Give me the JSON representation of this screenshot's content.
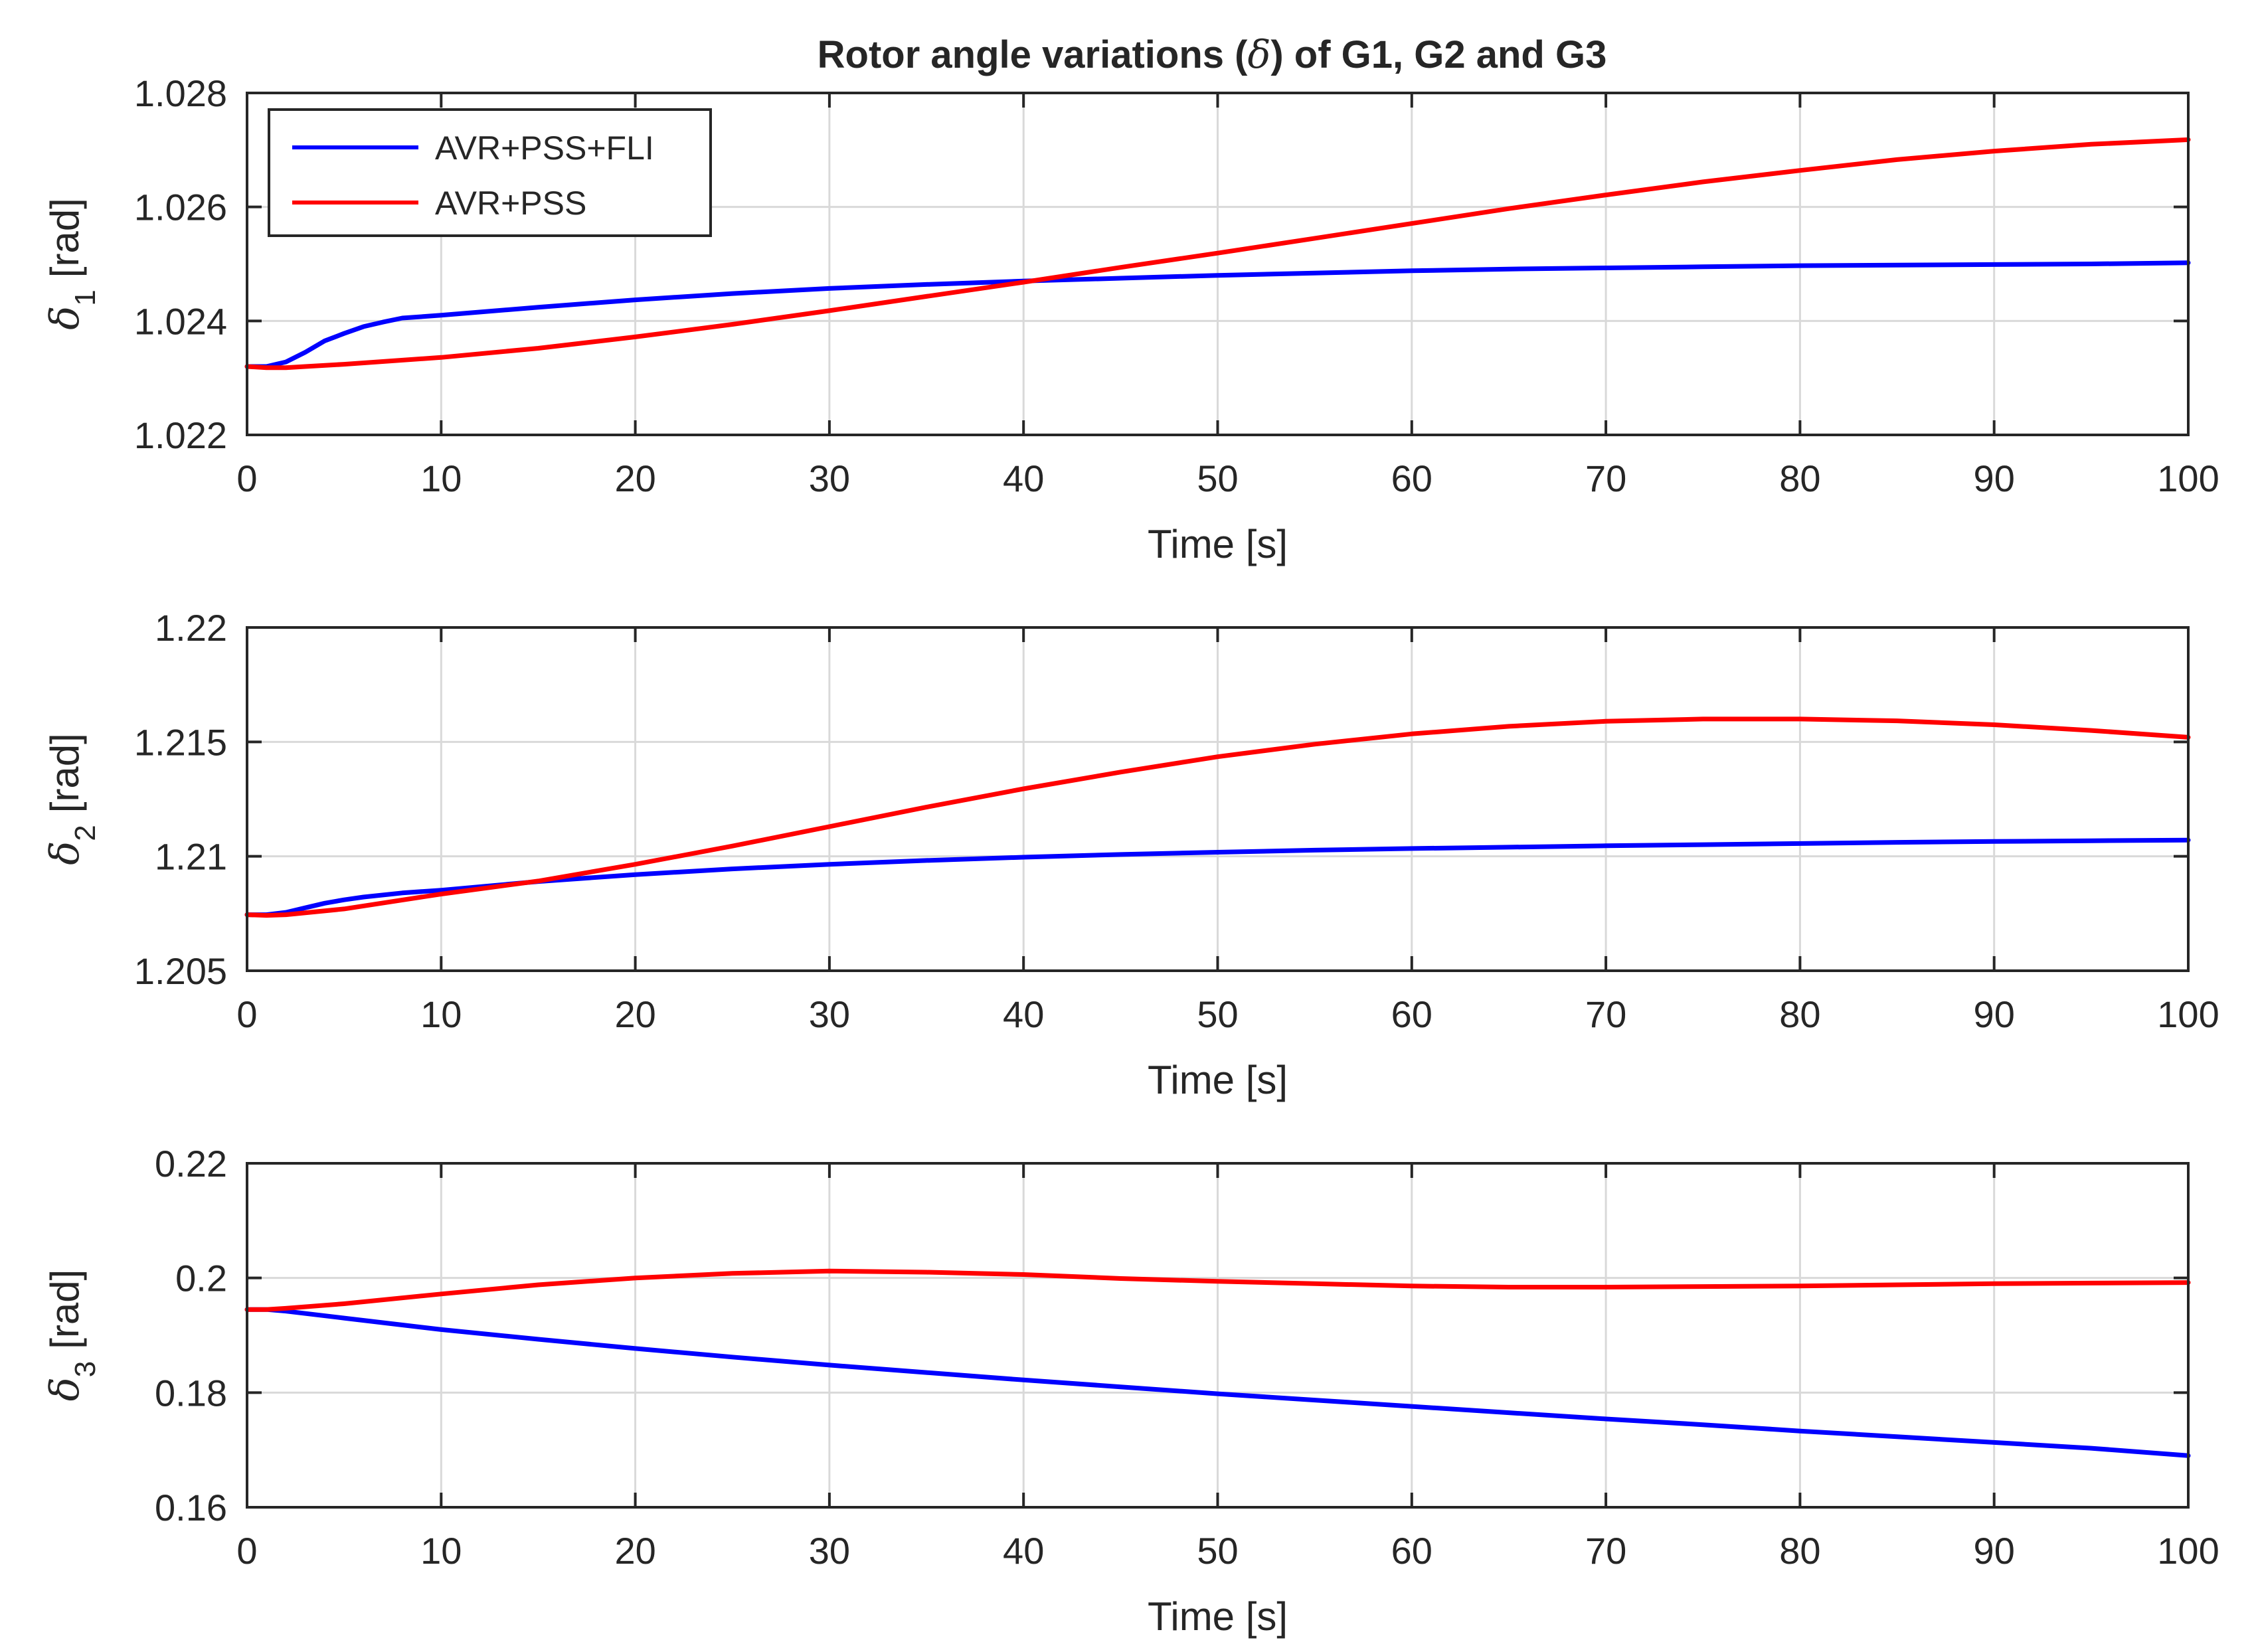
{
  "title": "Rotor angle variations (δ) of G1, G2 and G3",
  "title_parts": {
    "pre": "Rotor angle variations (",
    "sym": "δ",
    "post": ") of G1, G2 and G3"
  },
  "colors": {
    "blue": "#0000ff",
    "red": "#ff0000",
    "axis": "#262626",
    "grid": "#d9d9d9"
  },
  "legend": {
    "position": "top-left",
    "items": [
      "AVR+PSS+FLI",
      "AVR+PSS"
    ]
  },
  "chart_data": [
    {
      "type": "line",
      "ylabel": {
        "symbol": "δ",
        "sub": "1",
        "unit": "[rad]"
      },
      "xlabel": "Time [s]",
      "xlim": [
        0,
        100
      ],
      "ylim": [
        1.022,
        1.028
      ],
      "xticks": [
        "0",
        "10",
        "20",
        "30",
        "40",
        "50",
        "60",
        "70",
        "80",
        "90",
        "100"
      ],
      "yticks": [
        "1.022",
        "1.024",
        "1.026",
        "1.028"
      ],
      "ytick_values": [
        1.022,
        1.024,
        1.026,
        1.028
      ],
      "grid": true,
      "series": [
        {
          "name": "AVR+PSS+FLI",
          "color": "#0000ff",
          "x": [
            0,
            1,
            2,
            3,
            4,
            5,
            6,
            7,
            8,
            10,
            15,
            20,
            25,
            30,
            35,
            40,
            45,
            50,
            55,
            60,
            65,
            70,
            75,
            80,
            85,
            90,
            95,
            100
          ],
          "y": [
            1.0232,
            1.0232,
            1.02328,
            1.02345,
            1.02365,
            1.02378,
            1.0239,
            1.02398,
            1.02405,
            1.0241,
            1.02424,
            1.02437,
            1.02448,
            1.02457,
            1.02464,
            1.0247,
            1.02475,
            1.0248,
            1.02484,
            1.02488,
            1.02491,
            1.02493,
            1.02495,
            1.02497,
            1.02498,
            1.02499,
            1.025,
            1.02502
          ]
        },
        {
          "name": "AVR+PSS",
          "color": "#ff0000",
          "x": [
            0,
            1,
            2,
            3,
            5,
            10,
            15,
            20,
            25,
            30,
            35,
            40,
            45,
            50,
            55,
            60,
            65,
            70,
            75,
            80,
            85,
            90,
            95,
            100
          ],
          "y": [
            1.0232,
            1.02318,
            1.02318,
            1.0232,
            1.02324,
            1.02336,
            1.02352,
            1.02372,
            1.02394,
            1.02418,
            1.02443,
            1.02468,
            1.02494,
            1.02519,
            1.02545,
            1.02571,
            1.02597,
            1.02621,
            1.02644,
            1.02664,
            1.02683,
            1.02698,
            1.0271,
            1.02718
          ]
        }
      ]
    },
    {
      "type": "line",
      "ylabel": {
        "symbol": "δ",
        "sub": "2",
        "unit": "[rad]"
      },
      "xlabel": "Time [s]",
      "xlim": [
        0,
        100
      ],
      "ylim": [
        1.205,
        1.22
      ],
      "xticks": [
        "0",
        "10",
        "20",
        "30",
        "40",
        "50",
        "60",
        "70",
        "80",
        "90",
        "100"
      ],
      "yticks": [
        "1.205",
        "1.21",
        "1.215",
        "1.22"
      ],
      "ytick_values": [
        1.205,
        1.21,
        1.215,
        1.22
      ],
      "grid": true,
      "series": [
        {
          "name": "AVR+PSS+FLI",
          "color": "#0000ff",
          "x": [
            0,
            1,
            2,
            3,
            4,
            5,
            6,
            8,
            10,
            15,
            20,
            25,
            30,
            35,
            40,
            45,
            50,
            55,
            60,
            65,
            70,
            75,
            80,
            85,
            90,
            95,
            100
          ],
          "y": [
            1.20745,
            1.20745,
            1.20755,
            1.20775,
            1.20795,
            1.2081,
            1.20822,
            1.2084,
            1.20852,
            1.2089,
            1.2092,
            1.20945,
            1.20965,
            1.20982,
            1.20996,
            1.21008,
            1.21018,
            1.21027,
            1.21034,
            1.2104,
            1.21046,
            1.21051,
            1.21056,
            1.21061,
            1.21065,
            1.21068,
            1.21071
          ]
        },
        {
          "name": "AVR+PSS",
          "color": "#ff0000",
          "x": [
            0,
            1,
            2,
            5,
            10,
            15,
            20,
            25,
            30,
            35,
            40,
            45,
            50,
            55,
            60,
            65,
            70,
            75,
            80,
            85,
            90,
            95,
            100
          ],
          "y": [
            1.20745,
            1.20742,
            1.20745,
            1.2077,
            1.20835,
            1.20892,
            1.20965,
            1.21045,
            1.2113,
            1.21215,
            1.21295,
            1.21368,
            1.21435,
            1.2149,
            1.21535,
            1.21568,
            1.2159,
            1.216,
            1.216,
            1.21592,
            1.21575,
            1.2155,
            1.2152
          ]
        }
      ]
    },
    {
      "type": "line",
      "ylabel": {
        "symbol": "δ",
        "sub": "3",
        "unit": "[rad]"
      },
      "xlabel": "Time [s]",
      "xlim": [
        0,
        100
      ],
      "ylim": [
        0.16,
        0.22
      ],
      "xticks": [
        "0",
        "10",
        "20",
        "30",
        "40",
        "50",
        "60",
        "70",
        "80",
        "90",
        "100"
      ],
      "yticks": [
        "0.16",
        "0.18",
        "0.2",
        "0.22"
      ],
      "ytick_values": [
        0.16,
        0.18,
        0.2,
        0.22
      ],
      "grid": true,
      "series": [
        {
          "name": "AVR+PSS+FLI",
          "color": "#0000ff",
          "x": [
            0,
            1,
            2,
            5,
            10,
            15,
            20,
            25,
            30,
            35,
            40,
            45,
            50,
            55,
            60,
            65,
            70,
            75,
            80,
            85,
            90,
            95,
            100
          ],
          "y": [
            0.1945,
            0.1945,
            0.1942,
            0.193,
            0.191,
            0.1893,
            0.1877,
            0.1862,
            0.1848,
            0.1835,
            0.1822,
            0.181,
            0.1798,
            0.1787,
            0.1776,
            0.1765,
            0.1754,
            0.1744,
            0.1733,
            0.1723,
            0.1713,
            0.1703,
            0.169
          ]
        },
        {
          "name": "AVR+PSS",
          "color": "#ff0000",
          "x": [
            0,
            1,
            2,
            5,
            10,
            15,
            20,
            25,
            30,
            35,
            40,
            45,
            50,
            55,
            60,
            65,
            70,
            75,
            80,
            85,
            90,
            95,
            100
          ],
          "y": [
            0.1945,
            0.1945,
            0.1947,
            0.1955,
            0.1972,
            0.1988,
            0.2,
            0.2008,
            0.2012,
            0.201,
            0.2006,
            0.1999,
            0.1994,
            0.199,
            0.1986,
            0.1984,
            0.1984,
            0.1985,
            0.1986,
            0.1988,
            0.199,
            0.1991,
            0.1992
          ]
        }
      ]
    }
  ]
}
